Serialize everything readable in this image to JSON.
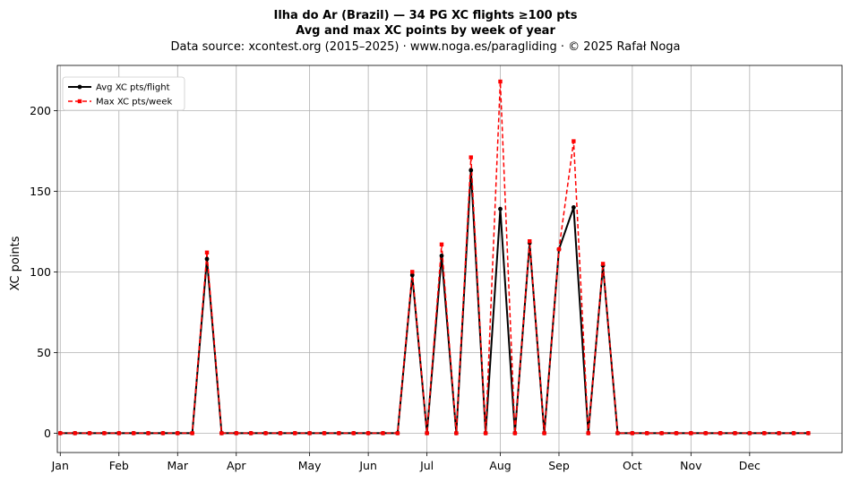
{
  "chart_data": {
    "type": "line",
    "title": "Ilha do Ar (Brazil)  —  34 PG XC flights ≥100 pts",
    "subtitle": "Avg and max XC points by week of year",
    "source": "Data source: xcontest.org (2015–2025)  ·  www.noga.es/paragliding  ·  © 2025 Rafał Noga",
    "xlabel": "",
    "ylabel": "XC points",
    "xlim": [
      -0.2,
      53.3
    ],
    "ylim": [
      -12,
      228
    ],
    "grid": true,
    "legend_position": "top-left",
    "x_ticks": [
      {
        "label": "Jan",
        "week": 0
      },
      {
        "label": "Feb",
        "week": 4
      },
      {
        "label": "Mar",
        "week": 8
      },
      {
        "label": "Apr",
        "week": 12
      },
      {
        "label": "May",
        "week": 17
      },
      {
        "label": "Jun",
        "week": 21
      },
      {
        "label": "Jul",
        "week": 25
      },
      {
        "label": "Aug",
        "week": 30
      },
      {
        "label": "Sep",
        "week": 34
      },
      {
        "label": "Oct",
        "week": 39
      },
      {
        "label": "Nov",
        "week": 43
      },
      {
        "label": "Dec",
        "week": 47
      }
    ],
    "y_ticks": [
      0,
      50,
      100,
      150,
      200
    ],
    "x": [
      0,
      1,
      2,
      3,
      4,
      5,
      6,
      7,
      8,
      9,
      10,
      11,
      12,
      13,
      14,
      15,
      16,
      17,
      18,
      19,
      20,
      21,
      22,
      23,
      24,
      25,
      26,
      27,
      28,
      29,
      30,
      31,
      32,
      33,
      34,
      35,
      36,
      37,
      38,
      39,
      40,
      41,
      42,
      43,
      44,
      45,
      46,
      47,
      48,
      49,
      50,
      51
    ],
    "series": [
      {
        "name": "Avg XC pts/flight",
        "color": "#000000",
        "style": "solid",
        "marker": "circle",
        "values": [
          0,
          0,
          0,
          0,
          0,
          0,
          0,
          0,
          0,
          0,
          108,
          0,
          0,
          0,
          0,
          0,
          0,
          0,
          0,
          0,
          0,
          0,
          0,
          0,
          98,
          0,
          110,
          0,
          163,
          0,
          139,
          0,
          118,
          0,
          114,
          140,
          0,
          104,
          0,
          0,
          0,
          0,
          0,
          0,
          0,
          0,
          0,
          0,
          0,
          0,
          0,
          0
        ]
      },
      {
        "name": "Max XC pts/week",
        "color": "#ff0000",
        "style": "dashed",
        "marker": "square",
        "values": [
          0,
          0,
          0,
          0,
          0,
          0,
          0,
          0,
          0,
          0,
          112,
          0,
          0,
          0,
          0,
          0,
          0,
          0,
          0,
          0,
          0,
          0,
          0,
          0,
          100,
          0,
          117,
          0,
          171,
          0,
          218,
          0,
          119,
          0,
          114,
          181,
          0,
          105,
          0,
          0,
          0,
          0,
          0,
          0,
          0,
          0,
          0,
          0,
          0,
          0,
          0,
          0
        ]
      }
    ]
  }
}
